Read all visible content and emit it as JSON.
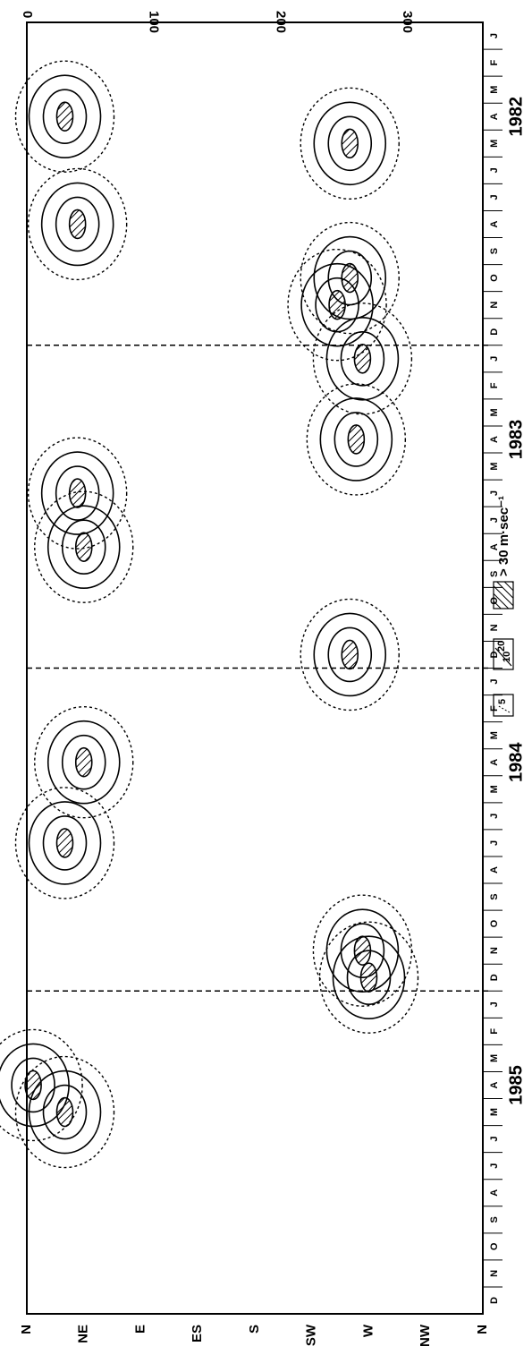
{
  "chart_data": {
    "type": "heatmap",
    "title": "",
    "x_axis": {
      "label": "",
      "start": "1982-01",
      "end": "1985-12",
      "month_labels": [
        "J",
        "F",
        "M",
        "A",
        "M",
        "J",
        "J",
        "A",
        "S",
        "O",
        "N",
        "D"
      ],
      "years": [
        "1982",
        "1983",
        "1984",
        "1985"
      ],
      "year_separators": [
        "1982-12/1983-01",
        "1983-12/1984-01",
        "1984-12/1985-01"
      ]
    },
    "y_axis": {
      "label": "",
      "unit": "degrees (wind direction)",
      "range": [
        0,
        360
      ],
      "direction_labels": [
        "N",
        "NE",
        "E",
        "ES",
        "S",
        "SW",
        "W",
        "NW",
        "N"
      ],
      "numeric_ticks": [
        "0",
        "100",
        "200",
        "300"
      ]
    },
    "legend": {
      "levels": [
        {
          "labels": [
            "5"
          ],
          "style": "dashed"
        },
        {
          "labels": [
            "10",
            "20"
          ],
          "style": "solid"
        },
        {
          "labels": [
            "> 30 m·sec⁻¹"
          ],
          "style": "hatched"
        }
      ]
    },
    "contour_levels_mps": [
      5,
      10,
      20,
      30
    ],
    "maxima": [
      {
        "date": "1982-04",
        "direction_deg": 30,
        "level": ">30"
      },
      {
        "date": "1982-08",
        "direction_deg": 40,
        "level": ">30"
      },
      {
        "date": "1982-05",
        "direction_deg": 255,
        "level": ">30"
      },
      {
        "date": "1982-10",
        "direction_deg": 255,
        "level": ">30"
      },
      {
        "date": "1982-11",
        "direction_deg": 245,
        "level": ">30"
      },
      {
        "date": "1983-01",
        "direction_deg": 265,
        "level": ">30"
      },
      {
        "date": "1983-04",
        "direction_deg": 260,
        "level": ">30"
      },
      {
        "date": "1983-06",
        "direction_deg": 40,
        "level": ">30"
      },
      {
        "date": "1983-08",
        "direction_deg": 45,
        "level": ">30"
      },
      {
        "date": "1983-12",
        "direction_deg": 255,
        "level": ">30"
      },
      {
        "date": "1984-04",
        "direction_deg": 45,
        "level": ">30"
      },
      {
        "date": "1984-07",
        "direction_deg": 30,
        "level": ">30"
      },
      {
        "date": "1984-11",
        "direction_deg": 265,
        "level": ">30"
      },
      {
        "date": "1984-12",
        "direction_deg": 270,
        "level": ">30"
      },
      {
        "date": "1985-04",
        "direction_deg": 5,
        "level": ">30"
      },
      {
        "date": "1985-05",
        "direction_deg": 30,
        "level": ">30"
      }
    ]
  }
}
